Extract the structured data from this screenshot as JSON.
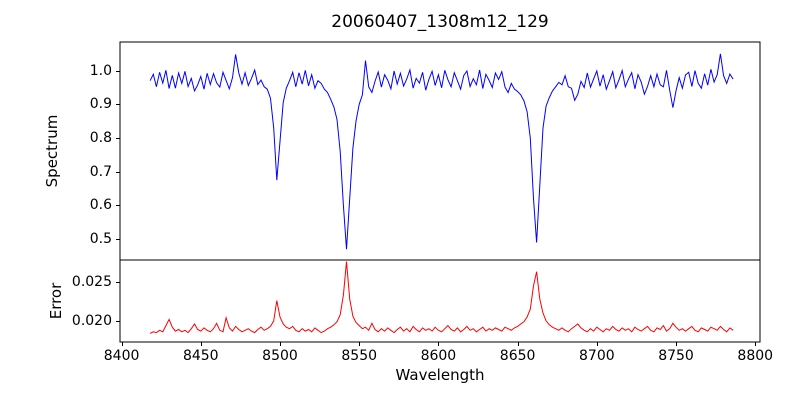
{
  "chart_data": {
    "type": "line",
    "title": "20060407_1308m12_129",
    "xlabel": "Wavelength",
    "grid": false,
    "legend": null,
    "background_color": "#ffffff",
    "axis_color": "#000000",
    "xlim": [
      8399,
      8803
    ],
    "x_ticks": [
      8400,
      8450,
      8500,
      8550,
      8600,
      8650,
      8700,
      8750,
      8800
    ],
    "x_tick_labels": [
      "8400",
      "8450",
      "8500",
      "8550",
      "8600",
      "8650",
      "8700",
      "8750",
      "8800"
    ],
    "x_start": 8418,
    "x_step": 2,
    "absorption_lines_wavelengths": [
      8498,
      8542,
      8662
    ],
    "panels": [
      {
        "name": "spectrum",
        "ylabel": "Spectrum",
        "color": "#0000ff",
        "ylim": [
          0.438,
          1.085
        ],
        "y_ticks": [
          0.5,
          0.6,
          0.7,
          0.8,
          0.9,
          1.0
        ],
        "y_tick_labels": [
          "0.5",
          "0.6",
          "0.7",
          "0.8",
          "0.9",
          "1.0"
        ],
        "values": [
          0.97,
          0.989,
          0.952,
          0.995,
          0.963,
          1.001,
          0.947,
          0.986,
          0.948,
          0.993,
          0.962,
          0.998,
          0.953,
          0.977,
          0.94,
          0.957,
          0.983,
          0.945,
          0.992,
          0.959,
          0.991,
          0.964,
          0.951,
          0.995,
          0.971,
          0.946,
          0.979,
          1.048,
          0.993,
          0.96,
          0.994,
          0.956,
          0.977,
          1.002,
          0.959,
          0.972,
          0.952,
          0.945,
          0.918,
          0.83,
          0.675,
          0.79,
          0.905,
          0.948,
          0.97,
          0.995,
          0.952,
          0.994,
          0.96,
          1.001,
          0.955,
          0.988,
          0.948,
          0.97,
          0.962,
          0.945,
          0.935,
          0.915,
          0.892,
          0.855,
          0.76,
          0.6,
          0.47,
          0.62,
          0.77,
          0.85,
          0.9,
          0.928,
          1.03,
          0.952,
          0.935,
          0.968,
          0.996,
          0.951,
          0.988,
          0.972,
          0.946,
          0.999,
          0.96,
          0.992,
          0.954,
          0.975,
          1.002,
          0.948,
          0.977,
          0.963,
          0.995,
          0.942,
          0.974,
          0.998,
          0.956,
          0.988,
          0.949,
          1.001,
          0.973,
          0.952,
          0.994,
          0.97,
          0.945,
          0.986,
          0.999,
          0.953,
          0.976,
          0.958,
          1.002,
          0.947,
          0.989,
          0.971,
          0.95,
          0.993,
          0.974,
          0.997,
          0.951,
          0.935,
          0.962,
          0.945,
          0.938,
          0.928,
          0.91,
          0.878,
          0.8,
          0.62,
          0.49,
          0.66,
          0.83,
          0.895,
          0.92,
          0.94,
          0.952,
          0.965,
          0.958,
          0.985,
          0.952,
          0.948,
          0.912,
          0.93,
          0.968,
          0.95,
          0.993,
          0.951,
          0.976,
          0.999,
          0.954,
          0.988,
          0.945,
          0.97,
          0.997,
          0.949,
          0.973,
          1.0,
          0.952,
          0.975,
          0.994,
          0.946,
          0.988,
          0.966,
          0.93,
          0.953,
          0.985,
          0.952,
          0.99,
          0.958,
          0.952,
          1.001,
          0.942,
          0.89,
          0.94,
          0.979,
          0.948,
          0.987,
          0.995,
          0.953,
          1.0,
          0.962,
          0.948,
          0.991,
          0.957,
          1.004,
          0.966,
          0.988,
          1.05,
          0.985,
          0.962,
          0.99,
          0.975
        ]
      },
      {
        "name": "error",
        "ylabel": "Error",
        "color": "#ff0000",
        "ylim": [
          0.0173,
          0.0278
        ],
        "y_ticks": [
          0.02,
          0.025
        ],
        "y_tick_labels": [
          "0.020",
          "0.025"
        ],
        "values": [
          0.0184,
          0.0186,
          0.0185,
          0.0188,
          0.0186,
          0.0194,
          0.0202,
          0.0192,
          0.0187,
          0.0189,
          0.0186,
          0.0188,
          0.0185,
          0.019,
          0.0196,
          0.0189,
          0.0187,
          0.0191,
          0.0188,
          0.0186,
          0.019,
          0.0197,
          0.0188,
          0.0186,
          0.0204,
          0.0191,
          0.0187,
          0.0193,
          0.0189,
          0.0186,
          0.0188,
          0.019,
          0.0187,
          0.0185,
          0.0189,
          0.0192,
          0.0188,
          0.019,
          0.0193,
          0.02,
          0.0226,
          0.0205,
          0.0196,
          0.0192,
          0.019,
          0.0193,
          0.0188,
          0.0186,
          0.019,
          0.0187,
          0.0189,
          0.0186,
          0.0191,
          0.0188,
          0.0185,
          0.0187,
          0.019,
          0.0192,
          0.0195,
          0.0199,
          0.0208,
          0.0233,
          0.0276,
          0.0228,
          0.0206,
          0.0198,
          0.0194,
          0.019,
          0.0192,
          0.0188,
          0.0197,
          0.0189,
          0.0186,
          0.019,
          0.0187,
          0.0191,
          0.0188,
          0.0185,
          0.0189,
          0.0192,
          0.0187,
          0.019,
          0.0186,
          0.0193,
          0.0189,
          0.0186,
          0.0191,
          0.0188,
          0.019,
          0.0187,
          0.0192,
          0.0188,
          0.0186,
          0.019,
          0.0194,
          0.0189,
          0.0187,
          0.0191,
          0.0186,
          0.0189,
          0.0193,
          0.0188,
          0.019,
          0.0186,
          0.0189,
          0.0192,
          0.0187,
          0.019,
          0.0188,
          0.0191,
          0.0189,
          0.0187,
          0.0192,
          0.019,
          0.0188,
          0.0191,
          0.0193,
          0.0196,
          0.0199,
          0.0205,
          0.0215,
          0.0245,
          0.0263,
          0.0228,
          0.021,
          0.02,
          0.0195,
          0.0192,
          0.019,
          0.0188,
          0.0191,
          0.0188,
          0.0186,
          0.019,
          0.0193,
          0.0196,
          0.0191,
          0.0188,
          0.0186,
          0.019,
          0.0187,
          0.0192,
          0.0189,
          0.0186,
          0.019,
          0.0188,
          0.0193,
          0.0189,
          0.0187,
          0.0191,
          0.0188,
          0.019,
          0.0186,
          0.0192,
          0.0189,
          0.0187,
          0.019,
          0.0193,
          0.0188,
          0.0186,
          0.0191,
          0.0189,
          0.0194,
          0.0187,
          0.019,
          0.0197,
          0.0192,
          0.0188,
          0.019,
          0.0187,
          0.019,
          0.0193,
          0.0188,
          0.0186,
          0.0191,
          0.0189,
          0.0187,
          0.0192,
          0.019,
          0.0188,
          0.0193,
          0.0189,
          0.0186,
          0.0191,
          0.0188
        ]
      }
    ]
  }
}
